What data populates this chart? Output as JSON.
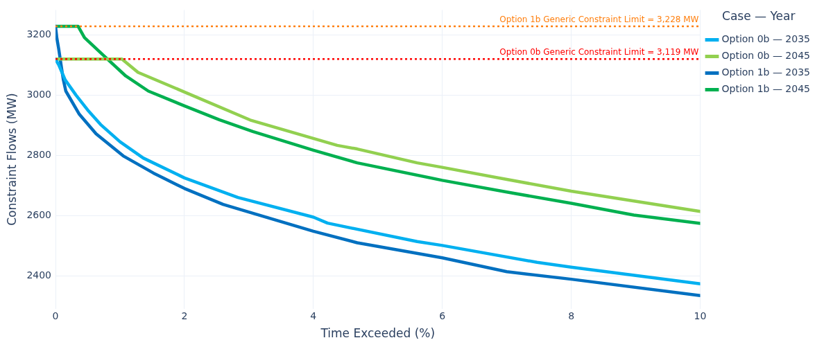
{
  "chart_data": {
    "type": "line",
    "xlabel": "Time Exceeded (%)",
    "ylabel": "Constraint Flows (MW)",
    "legend_title": "Case — Year",
    "xlim": [
      0,
      10
    ],
    "xticks": [
      0,
      2,
      4,
      6,
      8,
      10
    ],
    "ylim": [
      2291,
      3282
    ],
    "yticks": [
      2400,
      2600,
      2800,
      3000,
      3200
    ],
    "grid": true,
    "legend": "right",
    "marker": "none",
    "line_style": "solid",
    "series": [
      {
        "name": "Option 0b — 2035",
        "color": "#00b0f0",
        "x": [
          0,
          0.05,
          0.15,
          0.32,
          0.5,
          0.7,
          1.0,
          1.36,
          2,
          2.83,
          4,
          4.22,
          5.61,
          6,
          7.47,
          8,
          10
        ],
        "values": [
          3119,
          3100,
          3050,
          2999,
          2950,
          2902,
          2845,
          2791,
          2725,
          2660,
          2595,
          2575,
          2514,
          2501,
          2445,
          2429,
          2374
        ]
      },
      {
        "name": "Option 0b — 2045",
        "color": "#92d050",
        "x": [
          0,
          1.03,
          1.28,
          2,
          3.02,
          4,
          4.37,
          4.68,
          5.61,
          6,
          7,
          8,
          10
        ],
        "values": [
          3119,
          3119,
          3075,
          3010,
          2917,
          2856,
          2833,
          2821,
          2775,
          2760,
          2720,
          2681,
          2614
        ]
      },
      {
        "name": "Option 1b — 2035",
        "color": "#0070c0",
        "x": [
          0,
          0.02,
          0.05,
          0.12,
          0.16,
          0.37,
          0.63,
          1.05,
          1.52,
          2,
          2.6,
          4,
          4.68,
          6,
          7,
          8,
          10
        ],
        "values": [
          3228,
          3190,
          3152,
          3052,
          3013,
          2936,
          2871,
          2798,
          2741,
          2690,
          2637,
          2548,
          2510,
          2460,
          2414,
          2389,
          2335
        ]
      },
      {
        "name": "Option 1b — 2045",
        "color": "#00b050",
        "x": [
          0,
          0.35,
          0.45,
          0.74,
          1.09,
          1.44,
          2,
          2.54,
          3.06,
          4,
          4.68,
          6,
          7,
          8,
          8.97,
          10
        ],
        "values": [
          3228,
          3228,
          3190,
          3132,
          3063,
          3013,
          2964,
          2918,
          2879,
          2817,
          2775,
          2717,
          2678,
          2641,
          2602,
          2574
        ]
      }
    ],
    "ref_lines": [
      {
        "axis": "y",
        "value": 3228,
        "label": "Option 1b Generic Constraint Limit = 3,228 MW",
        "color": "#ff7f0e",
        "line_style": "dotted"
      },
      {
        "axis": "y",
        "value": 3119,
        "label": "Option 0b Generic Constraint Limit = 3,119 MW",
        "color": "#ff0000",
        "line_style": "dotted"
      }
    ]
  }
}
